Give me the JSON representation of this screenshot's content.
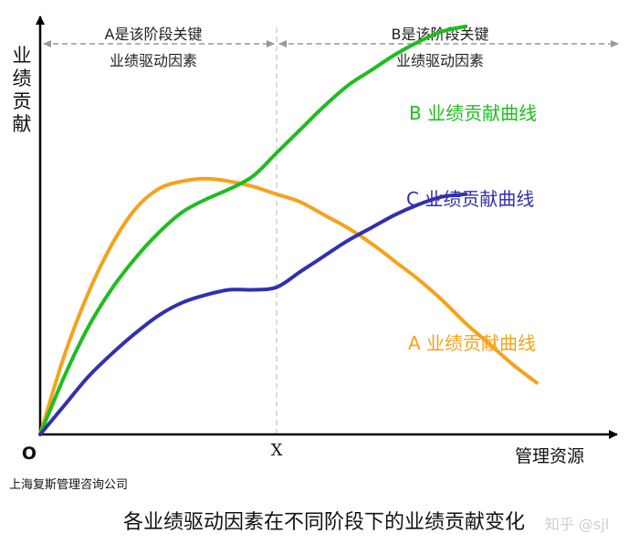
{
  "chart_data": {
    "type": "line",
    "ylabel_chars": [
      "业",
      "绩",
      "贡",
      "献"
    ],
    "xlabel": "管理资源",
    "origin_label": "O",
    "x_marker_label": "X",
    "phase_a_label": [
      "A是该阶段关键",
      "业绩驱动因素"
    ],
    "phase_b_label": [
      "B是该阶段关键",
      "业绩驱动因素"
    ],
    "company": "上海复斯管理咨询公司",
    "caption": "各业绩驱动因素在不同阶段下的业绩贡献变化",
    "watermark": "知乎 @sjl",
    "grid": false,
    "series": [
      {
        "name": "A 业绩贡献曲线",
        "color": "#F5A21B",
        "points": [
          [
            0,
            0
          ],
          [
            1,
            30
          ],
          [
            2,
            54
          ],
          [
            3,
            73
          ],
          [
            4,
            87
          ],
          [
            5,
            95
          ],
          [
            6,
            98
          ],
          [
            7,
            99
          ],
          [
            8,
            98
          ],
          [
            9,
            96
          ],
          [
            10,
            93
          ],
          [
            11,
            90
          ],
          [
            12,
            85
          ],
          [
            13,
            80
          ],
          [
            14,
            74
          ],
          [
            15,
            67
          ],
          [
            16,
            60
          ],
          [
            17,
            52
          ],
          [
            18,
            43
          ],
          [
            19,
            35
          ],
          [
            20,
            27
          ],
          [
            21,
            20
          ]
        ]
      },
      {
        "name": "B 业绩贡献曲线",
        "color": "#1DBD1D",
        "points": [
          [
            0,
            0
          ],
          [
            1,
            22
          ],
          [
            2,
            41
          ],
          [
            3,
            56
          ],
          [
            4,
            68
          ],
          [
            5,
            78
          ],
          [
            6,
            86
          ],
          [
            7,
            91
          ],
          [
            8,
            95
          ],
          [
            9,
            100
          ],
          [
            10,
            109
          ],
          [
            11,
            118
          ],
          [
            12,
            127
          ],
          [
            13,
            135
          ],
          [
            14,
            141
          ],
          [
            15,
            147
          ],
          [
            16,
            152
          ],
          [
            17,
            156
          ],
          [
            18,
            158
          ]
        ]
      },
      {
        "name": "C 业绩贡献曲线",
        "color": "#3030B0",
        "points": [
          [
            0,
            0
          ],
          [
            1,
            11
          ],
          [
            2,
            22
          ],
          [
            3,
            31
          ],
          [
            4,
            39
          ],
          [
            5,
            46
          ],
          [
            6,
            51
          ],
          [
            7,
            54
          ],
          [
            8,
            56
          ],
          [
            9,
            56
          ],
          [
            10,
            57
          ],
          [
            11,
            63
          ],
          [
            12,
            69
          ],
          [
            13,
            75
          ],
          [
            14,
            80
          ],
          [
            15,
            85
          ],
          [
            16,
            89
          ],
          [
            17,
            92
          ],
          [
            18,
            93
          ]
        ]
      }
    ]
  }
}
